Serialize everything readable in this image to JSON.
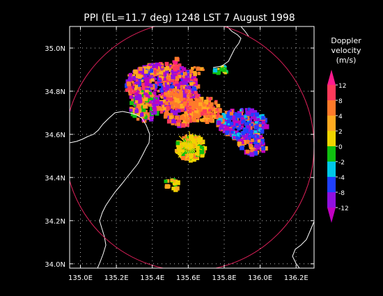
{
  "title": "PPI (EL=11.7 deg)  1248 LST 7 August 1998",
  "map": {
    "lon_ticks": [
      "135.0E",
      "135.2E",
      "135.4E",
      "135.6E",
      "135.8E",
      "136.0E",
      "136.2E"
    ],
    "lat_ticks": [
      "35.0N",
      "34.8N",
      "34.6N",
      "34.4N",
      "34.2N",
      "34.0N"
    ],
    "lon_values": [
      135.0,
      135.2,
      135.4,
      135.6,
      135.8,
      136.0,
      136.2
    ],
    "lat_values": [
      35.0,
      34.8,
      34.6,
      34.4,
      34.2,
      34.0
    ],
    "lon_range": [
      134.94,
      136.3
    ],
    "lat_range": [
      33.98,
      35.1
    ],
    "grid": "dotted",
    "radar_range_ring_color": "#e0205a"
  },
  "colorbar": {
    "title_line1": "Doppler",
    "title_line2": "velocity",
    "unit": "(m/s)",
    "tick_labels": [
      "12",
      "8",
      "4",
      "2",
      "0",
      "-2",
      "-4",
      "-8",
      "-12"
    ],
    "colors": [
      "#ff1a8c",
      "#ff3a5a",
      "#ff7a2a",
      "#ffaa20",
      "#f0d400",
      "#10c010",
      "#00c8e8",
      "#2040ff",
      "#9010e0",
      "#c000c0"
    ]
  }
}
